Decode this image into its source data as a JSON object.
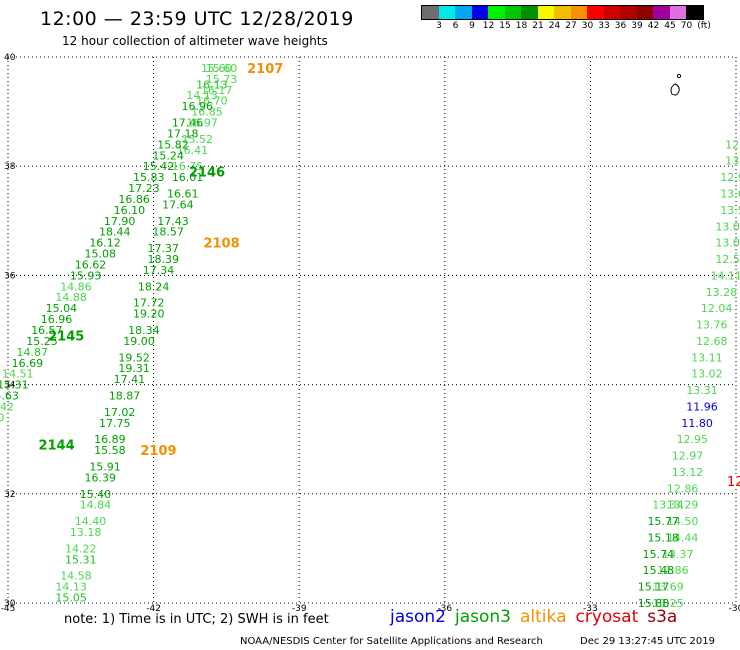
{
  "header": {
    "title": "12:00 — 23:59 UTC 12/28/2019",
    "subtitle": "12 hour collection of altimeter wave heights"
  },
  "colorbar": {
    "colors": [
      "#6e6e6e",
      "#00e8e8",
      "#00a8f0",
      "#0000f0",
      "#00f000",
      "#00c800",
      "#009000",
      "#f8f800",
      "#f0c000",
      "#f89000",
      "#f80000",
      "#d00000",
      "#b00000",
      "#900000",
      "#a000a0",
      "#e070e0",
      "#000000"
    ],
    "labels": [
      "3",
      "6",
      "9",
      "12",
      "15",
      "18",
      "21",
      "24",
      "27",
      "30",
      "33",
      "36",
      "39",
      "42",
      "45",
      "70",
      "(ft)"
    ]
  },
  "axes": {
    "x_ticks": [
      "-45",
      "-42",
      "-39",
      "-36",
      "-33",
      "-30"
    ],
    "y_ticks": [
      "40",
      "38",
      "36",
      "34",
      "32",
      "30"
    ]
  },
  "satellite_colors": {
    "jason2": "#0000e0",
    "jason3": "#00a000",
    "altika": "#f09000",
    "cryosat": "#e00000",
    "s3a": "#990000"
  },
  "chart_data": {
    "type": "map",
    "lon_range": [
      -45,
      -30
    ],
    "lat_range": [
      30,
      40
    ],
    "grid": true,
    "passes": [
      {
        "id": "2107",
        "satellite": "altika",
        "lon": -39.7,
        "lat": 39.8
      },
      {
        "id": "2146",
        "satellite": "jason3",
        "lon": -40.9,
        "lat": 37.9
      },
      {
        "id": "2108",
        "satellite": "altika",
        "lon": -40.6,
        "lat": 36.6
      },
      {
        "id": "2145",
        "satellite": "jason3",
        "lon": -43.8,
        "lat": 34.9
      },
      {
        "id": "2109",
        "satellite": "altika",
        "lon": -41.9,
        "lat": 32.8
      },
      {
        "id": "2144",
        "satellite": "jason3",
        "lon": -44.0,
        "lat": 32.9
      }
    ],
    "tracks": [
      {
        "name": "A",
        "points": [
          {
            "lon": -40.6,
            "lat": 39.8,
            "v": "15.60",
            "c": "lg"
          },
          {
            "lon": -40.6,
            "lat": 39.6,
            "v": "15.73",
            "c": "lg"
          },
          {
            "lon": -40.7,
            "lat": 39.4,
            "v": "16.17",
            "c": "lg"
          },
          {
            "lon": -40.8,
            "lat": 39.2,
            "v": "16.70",
            "c": "lg"
          },
          {
            "lon": -40.9,
            "lat": 39.0,
            "v": "16.85",
            "c": "lg"
          },
          {
            "lon": -41.0,
            "lat": 38.8,
            "v": "16.97",
            "c": "lg"
          },
          {
            "lon": -41.1,
            "lat": 38.5,
            "v": "15.52",
            "c": "lg"
          },
          {
            "lon": -41.2,
            "lat": 38.3,
            "v": "16.41",
            "c": "lg"
          },
          {
            "lon": -41.3,
            "lat": 38.0,
            "v": "16.75",
            "c": "lg"
          },
          {
            "lon": -41.3,
            "lat": 37.8,
            "v": "16.01",
            "c": "dg"
          },
          {
            "lon": -41.4,
            "lat": 37.5,
            "v": "16.61",
            "c": "dg"
          },
          {
            "lon": -41.5,
            "lat": 37.3,
            "v": "17.64",
            "c": "dg"
          },
          {
            "lon": -41.6,
            "lat": 37.0,
            "v": "17.43",
            "c": "dg"
          },
          {
            "lon": -41.7,
            "lat": 36.8,
            "v": "18.57",
            "c": "dg"
          },
          {
            "lon": -41.8,
            "lat": 36.5,
            "v": "17.37",
            "c": "dg"
          },
          {
            "lon": -41.8,
            "lat": 36.3,
            "v": "18.39",
            "c": "dg"
          },
          {
            "lon": -41.9,
            "lat": 36.1,
            "v": "17.34",
            "c": "dg"
          },
          {
            "lon": -42.0,
            "lat": 35.8,
            "v": "18.24",
            "c": "dg"
          },
          {
            "lon": -42.1,
            "lat": 35.5,
            "v": "17.72",
            "c": "dg"
          },
          {
            "lon": -42.1,
            "lat": 35.3,
            "v": "19.20",
            "c": "dg"
          },
          {
            "lon": -42.2,
            "lat": 35.0,
            "v": "18.34",
            "c": "dg"
          },
          {
            "lon": -42.3,
            "lat": 34.8,
            "v": "19.00",
            "c": "dg"
          },
          {
            "lon": -42.4,
            "lat": 34.5,
            "v": "19.52",
            "c": "dg"
          },
          {
            "lon": -42.4,
            "lat": 34.3,
            "v": "19.31",
            "c": "dg"
          },
          {
            "lon": -42.5,
            "lat": 34.1,
            "v": "17.41",
            "c": "dg"
          },
          {
            "lon": -42.6,
            "lat": 33.8,
            "v": "18.87",
            "c": "dg"
          },
          {
            "lon": -42.7,
            "lat": 33.5,
            "v": "17.02",
            "c": "dg"
          },
          {
            "lon": -42.8,
            "lat": 33.3,
            "v": "17.75",
            "c": "dg"
          },
          {
            "lon": -42.9,
            "lat": 33.0,
            "v": "16.89",
            "c": "dg"
          },
          {
            "lon": -42.9,
            "lat": 32.8,
            "v": "15.58",
            "c": "dg"
          },
          {
            "lon": -43.0,
            "lat": 32.5,
            "v": "15.91",
            "c": "dg"
          },
          {
            "lon": -43.1,
            "lat": 32.3,
            "v": "16.39",
            "c": "dg"
          },
          {
            "lon": -43.2,
            "lat": 32.0,
            "v": "15.40",
            "c": "dg"
          },
          {
            "lon": -43.2,
            "lat": 31.8,
            "v": "14.84",
            "c": "lg"
          },
          {
            "lon": -43.3,
            "lat": 31.5,
            "v": "14.40",
            "c": "lg"
          },
          {
            "lon": -43.4,
            "lat": 31.3,
            "v": "13.18",
            "c": "lg"
          },
          {
            "lon": -43.5,
            "lat": 31.0,
            "v": "14.22",
            "c": "lg"
          },
          {
            "lon": -43.5,
            "lat": 30.8,
            "v": "15.31",
            "c": "g"
          },
          {
            "lon": -43.6,
            "lat": 30.5,
            "v": "14.58",
            "c": "lg"
          },
          {
            "lon": -43.7,
            "lat": 30.3,
            "v": "14.13",
            "c": "lg"
          },
          {
            "lon": -43.7,
            "lat": 30.1,
            "v": "15.05",
            "c": "g"
          }
        ]
      },
      {
        "name": "B",
        "points": [
          {
            "lon": -40.7,
            "lat": 39.8,
            "v": "15.60",
            "c": "lg"
          },
          {
            "lon": -40.8,
            "lat": 39.5,
            "v": "16.13",
            "c": "g"
          },
          {
            "lon": -41.0,
            "lat": 39.3,
            "v": "14.13",
            "c": "lg"
          },
          {
            "lon": -41.1,
            "lat": 39.1,
            "v": "16.96",
            "c": "dg"
          },
          {
            "lon": -41.3,
            "lat": 38.8,
            "v": "17.46",
            "c": "dg"
          },
          {
            "lon": -41.4,
            "lat": 38.6,
            "v": "17.18",
            "c": "dg"
          },
          {
            "lon": -41.6,
            "lat": 38.4,
            "v": "15.82",
            "c": "dg"
          },
          {
            "lon": -41.7,
            "lat": 38.2,
            "v": "15.24",
            "c": "dg"
          },
          {
            "lon": -41.9,
            "lat": 38.0,
            "v": "15.42",
            "c": "dg"
          },
          {
            "lon": -42.1,
            "lat": 37.8,
            "v": "15.83",
            "c": "dg"
          },
          {
            "lon": -42.2,
            "lat": 37.6,
            "v": "17.23",
            "c": "dg"
          },
          {
            "lon": -42.4,
            "lat": 37.4,
            "v": "16.86",
            "c": "dg"
          },
          {
            "lon": -42.5,
            "lat": 37.2,
            "v": "16.10",
            "c": "dg"
          },
          {
            "lon": -42.7,
            "lat": 37.0,
            "v": "17.90",
            "c": "dg"
          },
          {
            "lon": -42.8,
            "lat": 36.8,
            "v": "18.44",
            "c": "dg"
          },
          {
            "lon": -43.0,
            "lat": 36.6,
            "v": "16.12",
            "c": "dg"
          },
          {
            "lon": -43.1,
            "lat": 36.4,
            "v": "15.08",
            "c": "dg"
          },
          {
            "lon": -43.3,
            "lat": 36.2,
            "v": "16.62",
            "c": "dg"
          },
          {
            "lon": -43.4,
            "lat": 36.0,
            "v": "15.93",
            "c": "dg"
          },
          {
            "lon": -43.6,
            "lat": 35.8,
            "v": "14.86",
            "c": "lg"
          },
          {
            "lon": -43.7,
            "lat": 35.6,
            "v": "14.88",
            "c": "lg"
          },
          {
            "lon": -43.9,
            "lat": 35.4,
            "v": "15.04",
            "c": "dg"
          },
          {
            "lon": -44.0,
            "lat": 35.2,
            "v": "16.96",
            "c": "dg"
          },
          {
            "lon": -44.2,
            "lat": 35.0,
            "v": "16.57",
            "c": "dg"
          },
          {
            "lon": -44.3,
            "lat": 34.8,
            "v": "15.25",
            "c": "dg"
          },
          {
            "lon": -44.5,
            "lat": 34.6,
            "v": "14.87",
            "c": "g"
          },
          {
            "lon": -44.6,
            "lat": 34.4,
            "v": "16.69",
            "c": "dg"
          },
          {
            "lon": -44.8,
            "lat": 34.2,
            "v": "14.51",
            "c": "lg"
          },
          {
            "lon": -44.9,
            "lat": 34.0,
            "v": "15.31",
            "c": "dg"
          },
          {
            "lon": -45.1,
            "lat": 33.8,
            "v": "15.63",
            "c": "dg"
          },
          {
            "lon": -45.2,
            "lat": 33.6,
            "v": "14.42",
            "c": "lg"
          },
          {
            "lon": -45.4,
            "lat": 33.4,
            "v": "13.30",
            "c": "lg"
          },
          {
            "lon": -45.5,
            "lat": 33.2,
            "v": "13.99",
            "c": "lg"
          },
          {
            "lon": -45.7,
            "lat": 33.0,
            "v": "13.96",
            "c": "lg"
          },
          {
            "lon": -45.8,
            "lat": 32.8,
            "v": "13.92",
            "c": "lg"
          },
          {
            "lon": -46.0,
            "lat": 32.6,
            "v": "13.54",
            "c": "lg"
          }
        ]
      },
      {
        "name": "C",
        "points": [
          {
            "lon": -29.7,
            "lat": 39.3,
            "v": "12.3",
            "c": "lg"
          },
          {
            "lon": -29.7,
            "lat": 38.9,
            "v": "11.8",
            "c": "b"
          },
          {
            "lon": -29.9,
            "lat": 38.4,
            "v": "12.16",
            "c": "lg"
          },
          {
            "lon": -29.9,
            "lat": 38.1,
            "v": "13.32",
            "c": "lg"
          },
          {
            "lon": -30.0,
            "lat": 37.8,
            "v": "12.96",
            "c": "lg"
          },
          {
            "lon": -30.0,
            "lat": 37.5,
            "v": "13.64",
            "c": "lg"
          },
          {
            "lon": -30.0,
            "lat": 37.2,
            "v": "13.50",
            "c": "lg"
          },
          {
            "lon": -30.1,
            "lat": 36.9,
            "v": "13.07",
            "c": "lg"
          },
          {
            "lon": -30.1,
            "lat": 36.6,
            "v": "13.06",
            "c": "lg"
          },
          {
            "lon": -30.1,
            "lat": 36.3,
            "v": "12.52",
            "c": "lg"
          },
          {
            "lon": -30.2,
            "lat": 36.0,
            "v": "14.11",
            "c": "lg"
          },
          {
            "lon": -30.3,
            "lat": 35.7,
            "v": "13.28",
            "c": "lg"
          },
          {
            "lon": -30.4,
            "lat": 35.4,
            "v": "12.04",
            "c": "lg"
          },
          {
            "lon": -30.5,
            "lat": 35.1,
            "v": "13.76",
            "c": "lg"
          },
          {
            "lon": -30.5,
            "lat": 34.8,
            "v": "12.68",
            "c": "lg"
          },
          {
            "lon": -30.6,
            "lat": 34.5,
            "v": "13.11",
            "c": "lg"
          },
          {
            "lon": -30.6,
            "lat": 34.2,
            "v": "13.02",
            "c": "lg"
          },
          {
            "lon": -30.7,
            "lat": 33.9,
            "v": "13.31",
            "c": "lg"
          },
          {
            "lon": -30.7,
            "lat": 33.6,
            "v": "11.96",
            "c": "b"
          },
          {
            "lon": -30.8,
            "lat": 33.3,
            "v": "11.80",
            "c": "b"
          },
          {
            "lon": -30.9,
            "lat": 33.0,
            "v": "12.95",
            "c": "lg"
          },
          {
            "lon": -31.0,
            "lat": 32.7,
            "v": "12.97",
            "c": "lg"
          },
          {
            "lon": -31.0,
            "lat": 32.4,
            "v": "13.12",
            "c": "lg"
          },
          {
            "lon": -31.1,
            "lat": 32.1,
            "v": "12.86",
            "c": "lg"
          },
          {
            "lon": -31.1,
            "lat": 31.8,
            "v": "13.29",
            "c": "lg"
          },
          {
            "lon": -31.1,
            "lat": 31.5,
            "v": "14.50",
            "c": "lg"
          },
          {
            "lon": -31.1,
            "lat": 31.2,
            "v": "14.44",
            "c": "lg"
          },
          {
            "lon": -31.2,
            "lat": 30.9,
            "v": "13.37",
            "c": "lg"
          },
          {
            "lon": -31.3,
            "lat": 30.6,
            "v": "12.86",
            "c": "lg"
          },
          {
            "lon": -31.4,
            "lat": 30.3,
            "v": "13.69",
            "c": "lg"
          },
          {
            "lon": -31.4,
            "lat": 30.0,
            "v": "13.25",
            "c": "lg"
          }
        ]
      },
      {
        "name": "D",
        "points": [
          {
            "lon": -31.4,
            "lat": 31.8,
            "v": "13.34",
            "c": "lg"
          },
          {
            "lon": -31.5,
            "lat": 31.5,
            "v": "15.77",
            "c": "dg"
          },
          {
            "lon": -31.5,
            "lat": 31.2,
            "v": "15.18",
            "c": "dg"
          },
          {
            "lon": -31.6,
            "lat": 30.9,
            "v": "15.74",
            "c": "dg"
          },
          {
            "lon": -31.6,
            "lat": 30.6,
            "v": "15.48",
            "c": "dg"
          },
          {
            "lon": -31.7,
            "lat": 30.3,
            "v": "15.17",
            "c": "dg"
          },
          {
            "lon": -31.7,
            "lat": 30.0,
            "v": "15.88",
            "c": "dg"
          }
        ]
      }
    ]
  },
  "footer": {
    "note": "note: 1) Time is in UTC; 2) SWH is in feet",
    "legend": [
      "jason2",
      "jason3",
      "altika",
      "cryosat",
      "s3a"
    ],
    "credit": "NOAA/NESDIS Center for Satellite Applications and Research",
    "generated": "Dec 29 13:27:45 UTC 2019"
  }
}
